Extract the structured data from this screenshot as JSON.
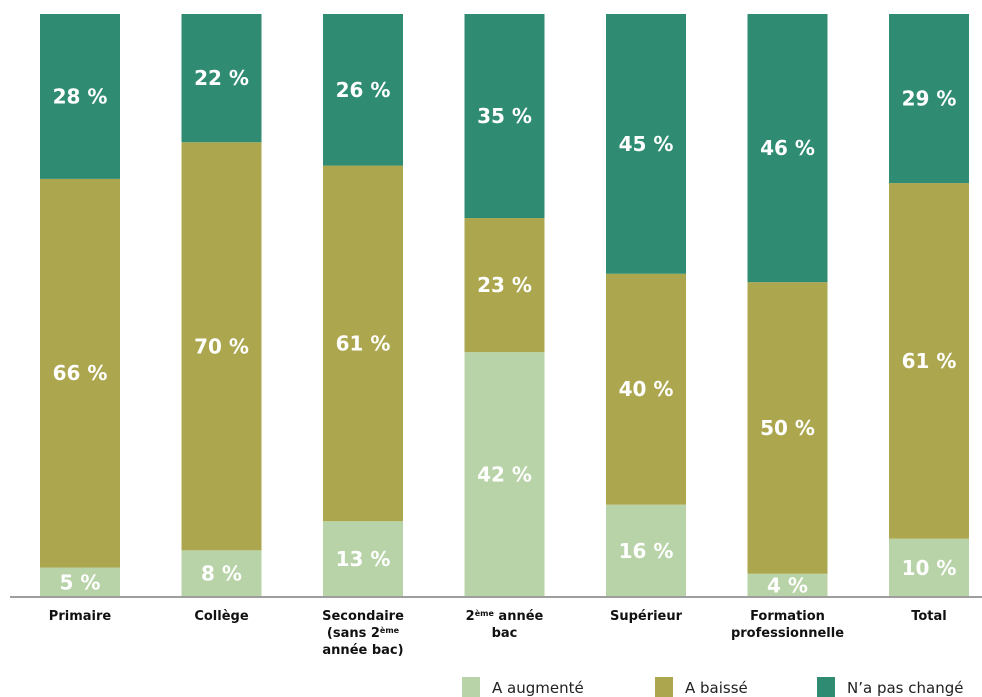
{
  "chart_data": {
    "type": "bar",
    "stacked": true,
    "percent": true,
    "categories": [
      {
        "lines": [
          "Primaire"
        ]
      },
      {
        "lines": [
          "Collège"
        ]
      },
      {
        "lines": [
          "Secondaire",
          "(sans 2|ème|",
          "année bac)"
        ]
      },
      {
        "lines": [
          "2|ème| année",
          "bac"
        ]
      },
      {
        "lines": [
          "Supérieur"
        ]
      },
      {
        "lines": [
          "Formation",
          "professionnelle"
        ]
      },
      {
        "lines": [
          "Total"
        ]
      }
    ],
    "series": [
      {
        "name": "A augmenté",
        "color": "#b8d3a7",
        "values": [
          5,
          8,
          13,
          42,
          16,
          4,
          10
        ]
      },
      {
        "name": "A baissé",
        "color": "#aca74e",
        "values": [
          66,
          70,
          61,
          23,
          40,
          50,
          61
        ]
      },
      {
        "name": "N’a pas changé",
        "color": "#2f8c72",
        "values": [
          28,
          22,
          26,
          35,
          45,
          46,
          29
        ]
      }
    ],
    "value_suffix": " %",
    "title": "",
    "xlabel": "",
    "ylabel": "",
    "legend": "bottom-right",
    "grid": false
  }
}
